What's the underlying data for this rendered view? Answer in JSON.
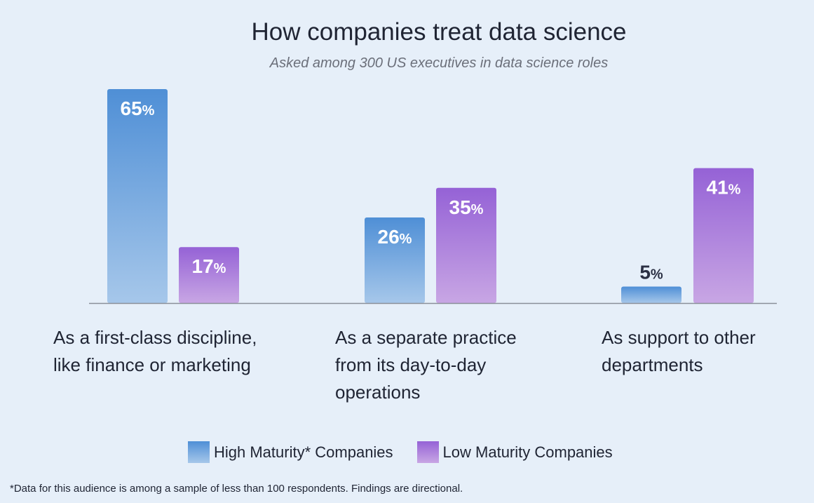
{
  "chart_data": {
    "type": "bar",
    "title": "How companies treat data science",
    "subtitle": "Asked among 300 US executives in data science roles",
    "categories": [
      [
        "As a first-class discipline,",
        "like finance or marketing"
      ],
      [
        "As a separate practice",
        "from its day-to-day",
        "operations"
      ],
      [
        "As support to other",
        "departments"
      ]
    ],
    "series": [
      {
        "name": "High Maturity* Companies",
        "values": [
          65,
          26,
          5
        ],
        "color_top": "#4f8fd6",
        "color_bottom": "#a6c7ea"
      },
      {
        "name": "Low Maturity Companies",
        "values": [
          17,
          35,
          41
        ],
        "color_top": "#9562d6",
        "color_bottom": "#c8a6e4"
      }
    ],
    "value_suffix": "%",
    "ylim": [
      0,
      65
    ],
    "grid": false,
    "legend": "bottom"
  },
  "footnote": "*Data for this audience is among a sample of less than 100 respondents. Findings are directional."
}
